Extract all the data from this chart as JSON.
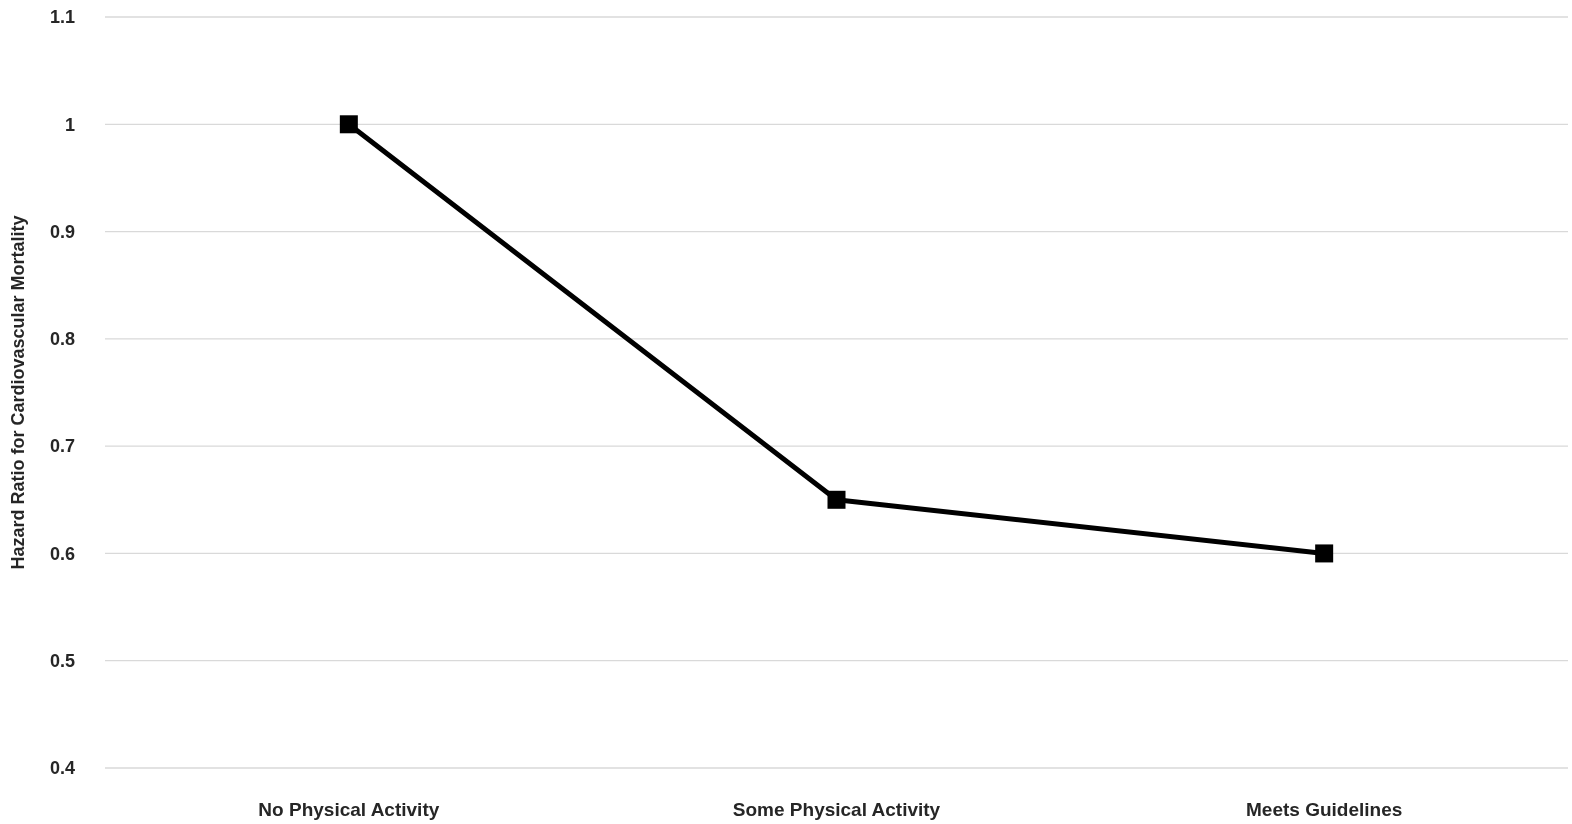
{
  "chart_data": {
    "type": "line",
    "ylabel": "Hazard Ratio for Cardiovascular Mortality",
    "categories": [
      "No Physical Activity",
      "Some Physical Activity",
      "Meets Guidelines"
    ],
    "series": [
      {
        "color": "#000000",
        "values": [
          1,
          0.65,
          0.6
        ]
      }
    ],
    "ylim": [
      0.4,
      1.1
    ],
    "yticks": [
      0.4,
      0.5,
      0.6,
      0.7,
      0.8,
      0.9,
      1,
      1.1
    ],
    "grid": "y",
    "marker": "square",
    "line_style": "solid"
  }
}
